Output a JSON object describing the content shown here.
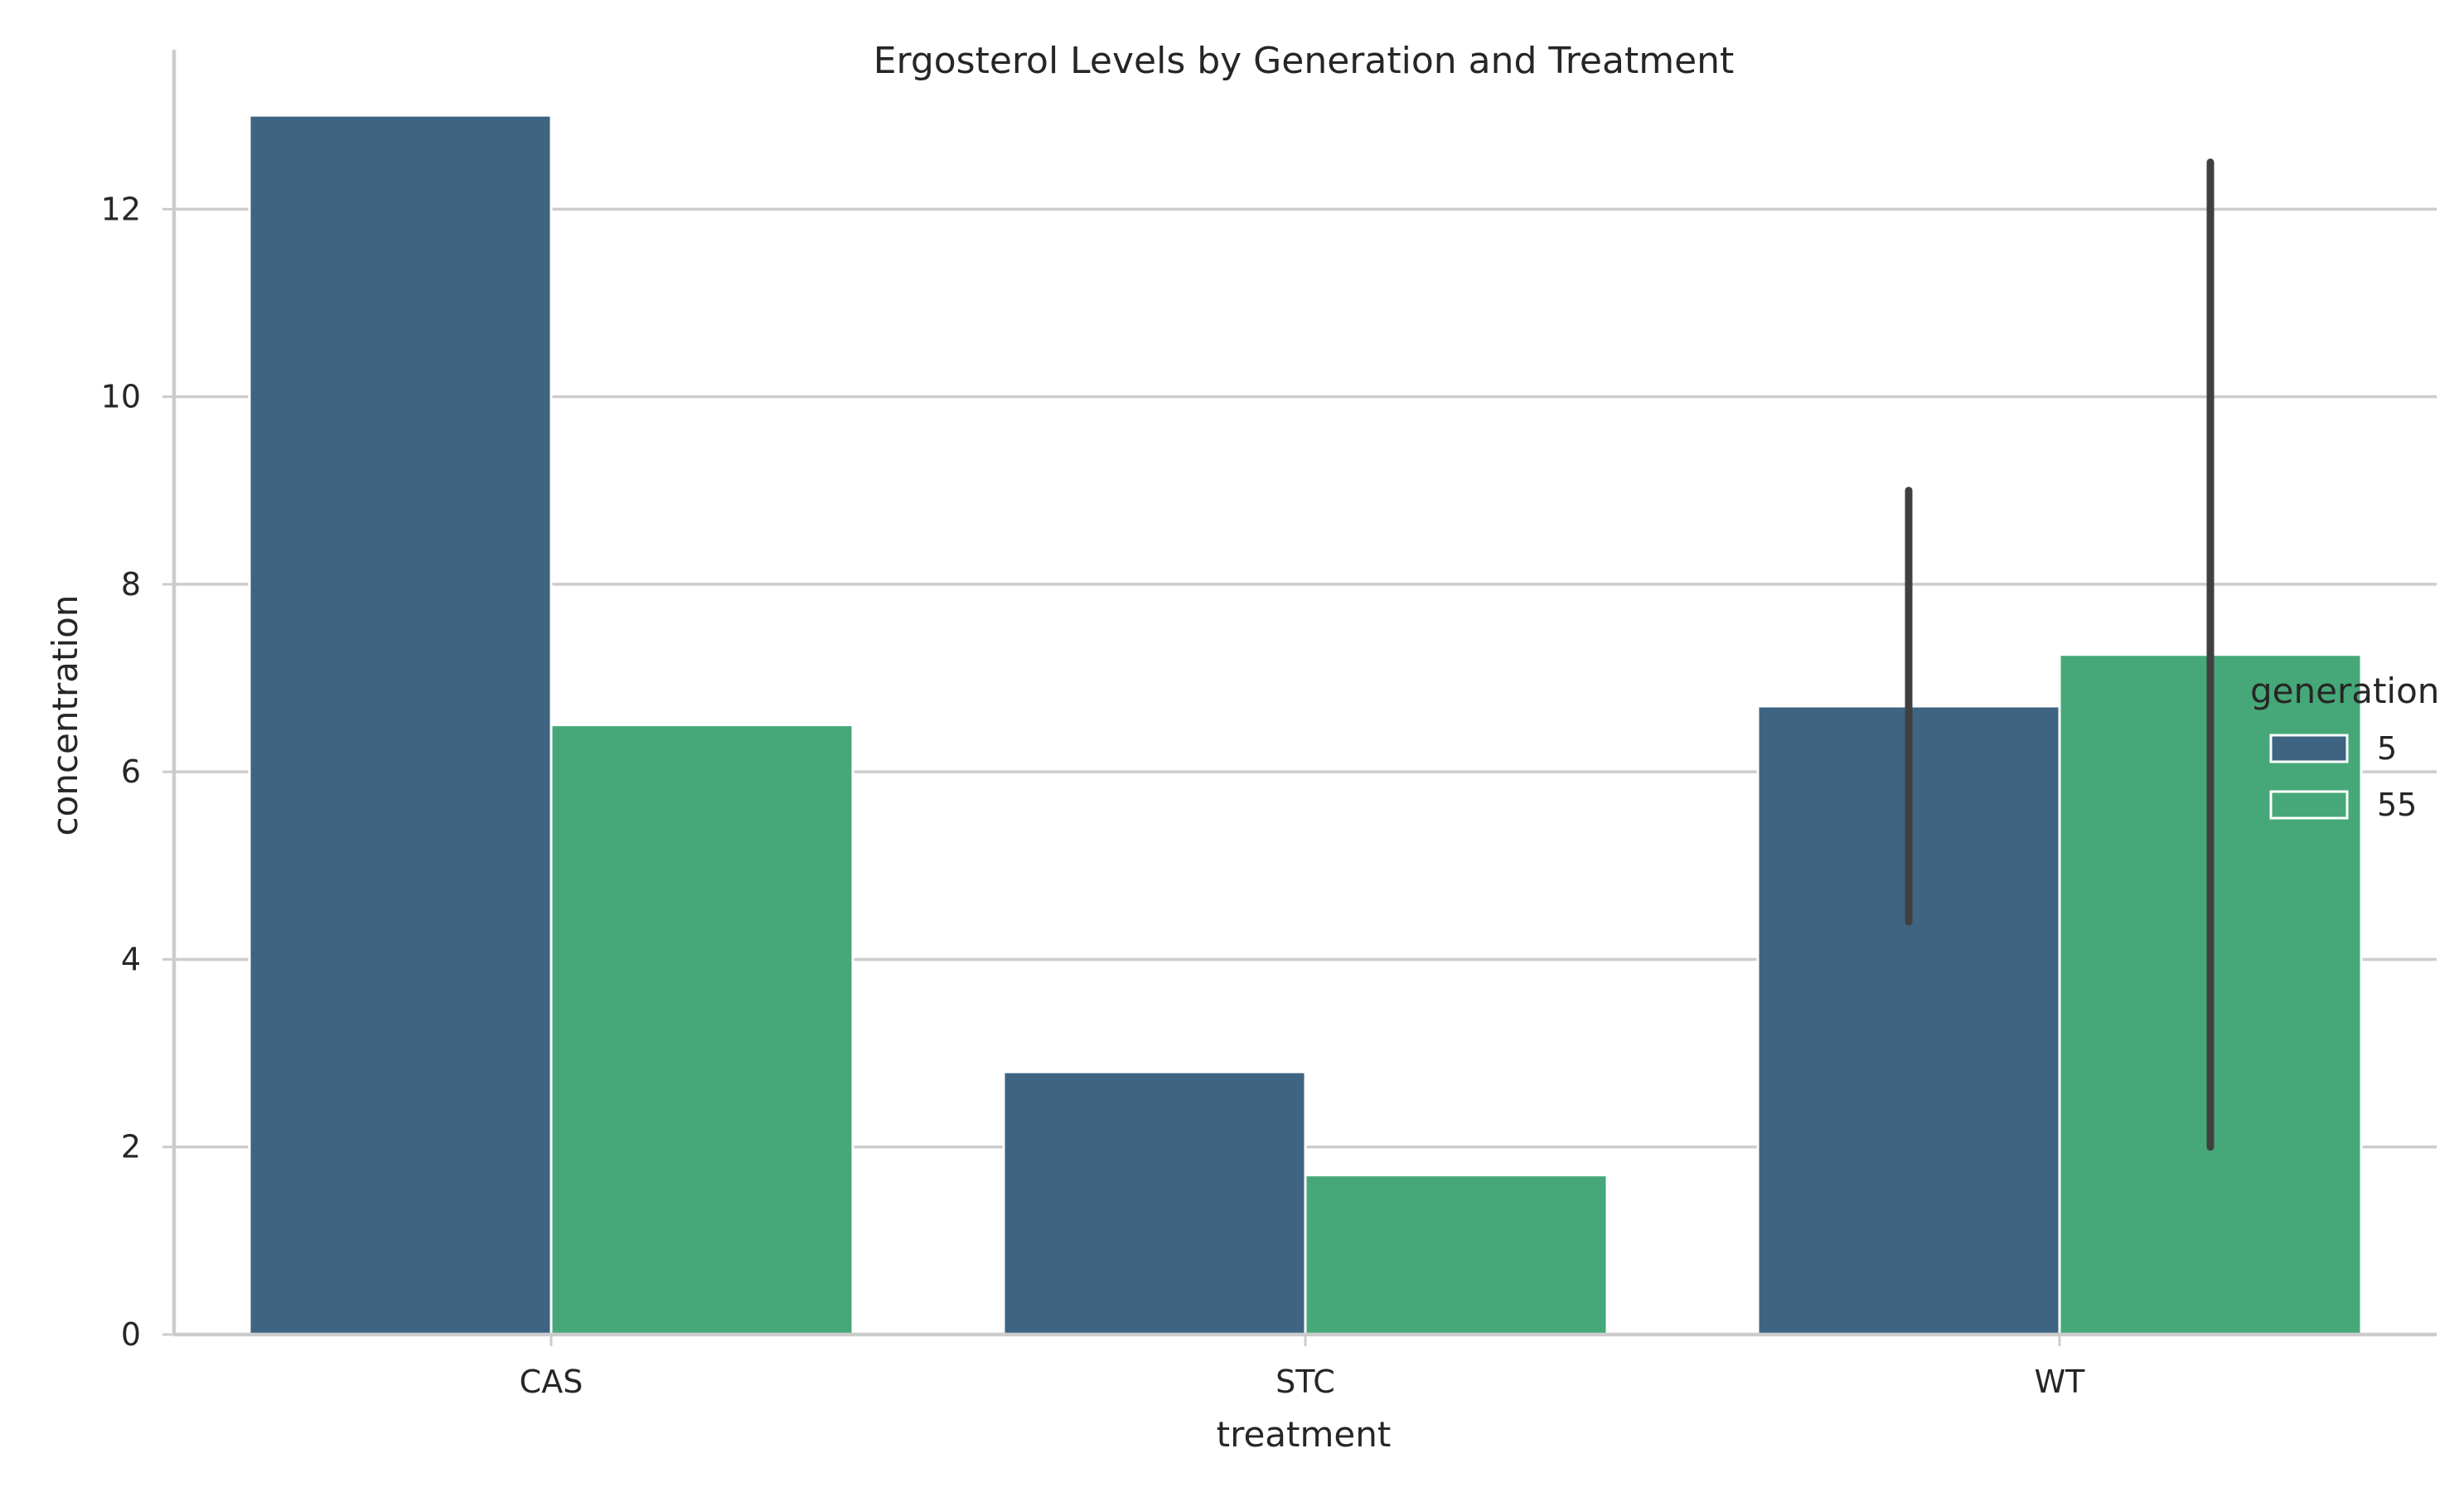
{
  "chart_data": {
    "type": "bar",
    "title": "Ergosterol Levels by Generation and Treatment",
    "xlabel": "treatment",
    "ylabel": "concentration",
    "categories": [
      "CAS",
      "STC",
      "WT"
    ],
    "ylim": [
      0,
      13.7
    ],
    "yticks": [
      "0",
      "2",
      "4",
      "6",
      "8",
      "10",
      "12"
    ],
    "grid": "horizontal",
    "legend": {
      "title": "generation",
      "placement": "center-right"
    },
    "series": [
      {
        "name": "5",
        "color": "#3e6482",
        "values": [
          13.0,
          2.8,
          6.7
        ],
        "error_low": [
          null,
          null,
          4.4
        ],
        "error_high": [
          null,
          null,
          9.0
        ]
      },
      {
        "name": "55",
        "color": "#46a878",
        "values": [
          6.5,
          1.7,
          7.25
        ],
        "error_low": [
          null,
          null,
          2.0
        ],
        "error_high": [
          null,
          null,
          12.5
        ]
      }
    ]
  }
}
